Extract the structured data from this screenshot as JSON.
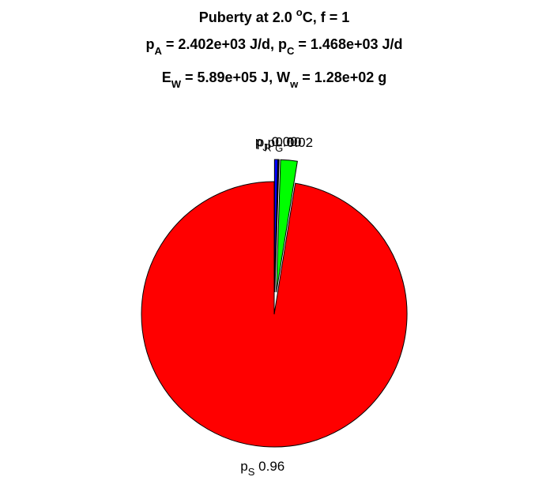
{
  "chart_data": {
    "type": "pie",
    "title_lines": [
      [
        {
          "text": "Puberty at 2.0 "
        },
        {
          "text": "o",
          "style": "sup"
        },
        {
          "text": "C, f = 1"
        }
      ],
      [
        {
          "text": "p"
        },
        {
          "text": "A",
          "style": "sub"
        },
        {
          "text": " = 2.402e+03 J/d,  p"
        },
        {
          "text": "C",
          "style": "sub"
        },
        {
          "text": " = 1.468e+03 J/d"
        }
      ],
      [
        {
          "text": "E"
        },
        {
          "text": "W",
          "style": "sub"
        },
        {
          "text": " = 5.89e+05 J, W"
        },
        {
          "text": "w",
          "style": "sub"
        },
        {
          "text": " = 1.28e+02 g"
        }
      ]
    ],
    "labels": [
      {
        "text": "p",
        "sub": "J"
      },
      {
        "text": "p",
        "sub": "R"
      },
      {
        "text": "p",
        "sub": "G"
      },
      {
        "text": "p",
        "sub": "S"
      }
    ],
    "values": [
      0.004,
      0.001,
      0.02,
      0.96
    ],
    "value_labels": [
      "0.00",
      "0.00",
      "0.02",
      "0.96"
    ],
    "colors": [
      "#0000ff",
      "#006400",
      "#00ff00",
      "#ff0000"
    ],
    "explode": [
      true,
      true,
      true,
      false
    ]
  }
}
